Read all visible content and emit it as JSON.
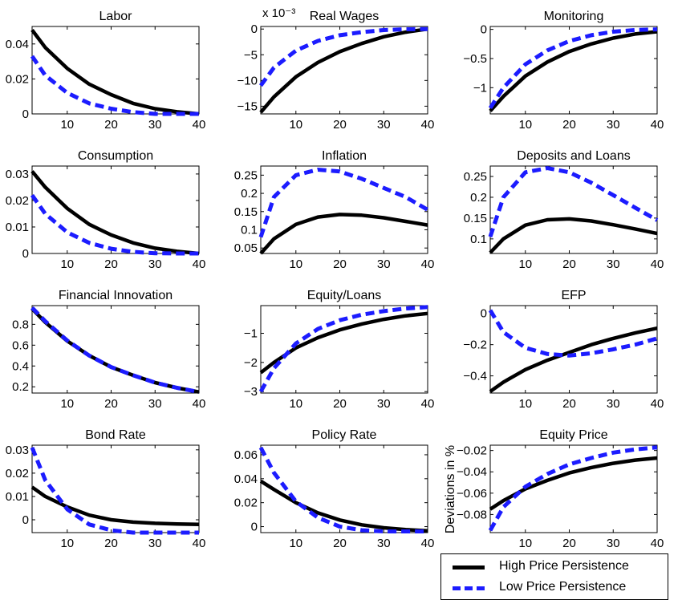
{
  "colors": {
    "high": "#000000",
    "low": "#1c1cff"
  },
  "legend": {
    "high_label": "High Price Persistence",
    "low_label": "Low Price Persistence"
  },
  "y_side_label": "Deviations in %",
  "chart_data": [
    {
      "type": "line",
      "title": "Labor",
      "xlim": [
        2,
        40
      ],
      "ylim": [
        0,
        0.05
      ],
      "xticks": [
        10,
        20,
        30,
        40
      ],
      "yticks": [
        0,
        0.02,
        0.04
      ],
      "ytick_labels": [
        "0",
        "0.02",
        "0.04"
      ],
      "x": [
        2,
        5,
        10,
        15,
        20,
        25,
        30,
        35,
        40
      ],
      "series": [
        {
          "name": "High Price Persistence",
          "values": [
            0.048,
            0.038,
            0.026,
            0.017,
            0.011,
            0.006,
            0.003,
            0.0012,
            0.0
          ]
        },
        {
          "name": "Low Price Persistence",
          "values": [
            0.033,
            0.022,
            0.012,
            0.006,
            0.003,
            0.001,
            0.0,
            0.0,
            0.0
          ]
        }
      ]
    },
    {
      "type": "line",
      "title": "Real Wages",
      "axis_multiplier": "x 10⁻³",
      "xlim": [
        2,
        40
      ],
      "ylim": [
        -16.5,
        0.5
      ],
      "xticks": [
        10,
        20,
        30,
        40
      ],
      "yticks": [
        -15,
        -10,
        -5,
        0
      ],
      "ytick_labels": [
        "−15",
        "−10",
        "−5",
        "0"
      ],
      "x": [
        2,
        5,
        10,
        15,
        20,
        25,
        30,
        35,
        40
      ],
      "series": [
        {
          "name": "High Price Persistence",
          "values": [
            -16.2,
            -13.2,
            -9.3,
            -6.5,
            -4.4,
            -2.8,
            -1.5,
            -0.6,
            0.0
          ]
        },
        {
          "name": "Low Price Persistence",
          "values": [
            -11,
            -7.5,
            -4.2,
            -2.3,
            -1.2,
            -0.6,
            -0.2,
            -0.05,
            0.0
          ]
        }
      ]
    },
    {
      "type": "line",
      "title": "Monitoring",
      "xlim": [
        2,
        40
      ],
      "ylim": [
        -1.45,
        0.05
      ],
      "xticks": [
        10,
        20,
        30,
        40
      ],
      "yticks": [
        -1,
        -0.5,
        0
      ],
      "ytick_labels": [
        "−1",
        "−0.5",
        "0"
      ],
      "x": [
        2,
        5,
        10,
        15,
        20,
        25,
        30,
        35,
        40
      ],
      "series": [
        {
          "name": "High Price Persistence",
          "values": [
            -1.4,
            -1.15,
            -0.8,
            -0.56,
            -0.38,
            -0.25,
            -0.15,
            -0.08,
            -0.04
          ]
        },
        {
          "name": "Low Price Persistence",
          "values": [
            -1.35,
            -1.0,
            -0.6,
            -0.36,
            -0.2,
            -0.1,
            -0.04,
            -0.01,
            0.0
          ]
        }
      ]
    },
    {
      "type": "line",
      "title": "Consumption",
      "xlim": [
        2,
        40
      ],
      "ylim": [
        0,
        0.033
      ],
      "xticks": [
        10,
        20,
        30,
        40
      ],
      "yticks": [
        0,
        0.01,
        0.02,
        0.03
      ],
      "ytick_labels": [
        "0",
        "0.01",
        "0.02",
        "0.03"
      ],
      "x": [
        2,
        5,
        10,
        15,
        20,
        25,
        30,
        35,
        40
      ],
      "series": [
        {
          "name": "High Price Persistence",
          "values": [
            0.031,
            0.025,
            0.017,
            0.011,
            0.007,
            0.004,
            0.002,
            0.0008,
            0.0
          ]
        },
        {
          "name": "Low Price Persistence",
          "values": [
            0.022,
            0.015,
            0.008,
            0.004,
            0.0018,
            0.0006,
            0.0001,
            0.0,
            0.0
          ]
        }
      ]
    },
    {
      "type": "line",
      "title": "Inflation",
      "xlim": [
        2,
        40
      ],
      "ylim": [
        0.035,
        0.275
      ],
      "xticks": [
        10,
        20,
        30,
        40
      ],
      "yticks": [
        0.05,
        0.1,
        0.15,
        0.2,
        0.25
      ],
      "ytick_labels": [
        "0.05",
        "0.1",
        "0.15",
        "0.2",
        "0.25"
      ],
      "x": [
        2,
        5,
        10,
        15,
        20,
        25,
        30,
        35,
        40
      ],
      "series": [
        {
          "name": "High Price Persistence",
          "values": [
            0.035,
            0.075,
            0.115,
            0.135,
            0.142,
            0.14,
            0.133,
            0.123,
            0.113
          ]
        },
        {
          "name": "Low Price Persistence",
          "values": [
            0.08,
            0.19,
            0.25,
            0.265,
            0.26,
            0.24,
            0.215,
            0.19,
            0.155
          ]
        }
      ]
    },
    {
      "type": "line",
      "title": "Deposits and Loans",
      "xlim": [
        2,
        40
      ],
      "ylim": [
        0.065,
        0.275
      ],
      "xticks": [
        10,
        20,
        30,
        40
      ],
      "yticks": [
        0.1,
        0.15,
        0.2,
        0.25
      ],
      "ytick_labels": [
        "0.1",
        "0.15",
        "0.2",
        "0.25"
      ],
      "x": [
        2,
        5,
        10,
        15,
        20,
        25,
        30,
        35,
        40
      ],
      "series": [
        {
          "name": "High Price Persistence",
          "values": [
            0.067,
            0.1,
            0.133,
            0.146,
            0.148,
            0.143,
            0.134,
            0.124,
            0.113
          ]
        },
        {
          "name": "Low Price Persistence",
          "values": [
            0.105,
            0.2,
            0.26,
            0.27,
            0.26,
            0.235,
            0.205,
            0.175,
            0.145
          ]
        }
      ]
    },
    {
      "type": "line",
      "title": "Financial Innovation",
      "xlim": [
        2,
        40
      ],
      "ylim": [
        0.14,
        0.98
      ],
      "xticks": [
        10,
        20,
        30,
        40
      ],
      "yticks": [
        0.2,
        0.4,
        0.6,
        0.8
      ],
      "ytick_labels": [
        "0.2",
        "0.4",
        "0.6",
        "0.8"
      ],
      "x": [
        2,
        5,
        10,
        15,
        20,
        25,
        30,
        35,
        40
      ],
      "series": [
        {
          "name": "High Price Persistence",
          "values": [
            0.95,
            0.82,
            0.64,
            0.5,
            0.39,
            0.31,
            0.24,
            0.19,
            0.15
          ]
        },
        {
          "name": "Low Price Persistence",
          "values": [
            0.96,
            0.83,
            0.645,
            0.5,
            0.39,
            0.31,
            0.24,
            0.19,
            0.15
          ]
        }
      ]
    },
    {
      "type": "line",
      "title": "Equity/Loans",
      "xlim": [
        2,
        40
      ],
      "ylim": [
        -3.05,
        -0.05
      ],
      "xticks": [
        10,
        20,
        30,
        40
      ],
      "yticks": [
        -3,
        -2,
        -1
      ],
      "ytick_labels": [
        "−3",
        "−2",
        "−1"
      ],
      "x": [
        2,
        5,
        10,
        15,
        20,
        25,
        30,
        35,
        40
      ],
      "series": [
        {
          "name": "High Price Persistence",
          "values": [
            -2.35,
            -2.0,
            -1.5,
            -1.15,
            -0.88,
            -0.68,
            -0.52,
            -0.4,
            -0.32
          ]
        },
        {
          "name": "Low Price Persistence",
          "values": [
            -3.0,
            -2.2,
            -1.35,
            -0.85,
            -0.55,
            -0.36,
            -0.24,
            -0.15,
            -0.1
          ]
        }
      ]
    },
    {
      "type": "line",
      "title": "EFP",
      "xlim": [
        2,
        40
      ],
      "ylim": [
        -0.51,
        0.05
      ],
      "xticks": [
        10,
        20,
        30,
        40
      ],
      "yticks": [
        -0.4,
        -0.2,
        0
      ],
      "ytick_labels": [
        "−0.4",
        "−0.2",
        "0"
      ],
      "x": [
        2,
        5,
        10,
        15,
        20,
        25,
        30,
        35,
        40
      ],
      "series": [
        {
          "name": "High Price Persistence",
          "values": [
            -0.5,
            -0.44,
            -0.36,
            -0.3,
            -0.25,
            -0.2,
            -0.16,
            -0.125,
            -0.095
          ]
        },
        {
          "name": "Low Price Persistence",
          "values": [
            0.02,
            -0.12,
            -0.22,
            -0.26,
            -0.27,
            -0.255,
            -0.23,
            -0.2,
            -0.16
          ]
        }
      ]
    },
    {
      "type": "line",
      "title": "Bond Rate",
      "xlim": [
        2,
        40
      ],
      "ylim": [
        -0.0055,
        0.032
      ],
      "xticks": [
        10,
        20,
        30,
        40
      ],
      "yticks": [
        0,
        0.01,
        0.02,
        0.03
      ],
      "ytick_labels": [
        "0",
        "0.01",
        "0.02",
        "0.03"
      ],
      "x": [
        2,
        5,
        10,
        15,
        20,
        25,
        30,
        35,
        40
      ],
      "series": [
        {
          "name": "High Price Persistence",
          "values": [
            0.014,
            0.01,
            0.0055,
            0.002,
            0.0,
            -0.001,
            -0.0015,
            -0.0018,
            -0.002
          ]
        },
        {
          "name": "Low Price Persistence",
          "values": [
            0.031,
            0.017,
            0.0045,
            -0.002,
            -0.0045,
            -0.0055,
            -0.0055,
            -0.0055,
            -0.0055
          ]
        }
      ]
    },
    {
      "type": "line",
      "title": "Policy Rate",
      "xlim": [
        2,
        40
      ],
      "ylim": [
        -0.005,
        0.068
      ],
      "xticks": [
        10,
        20,
        30,
        40
      ],
      "yticks": [
        0,
        0.02,
        0.04,
        0.06
      ],
      "ytick_labels": [
        "0",
        "0.02",
        "0.04",
        "0.06"
      ],
      "x": [
        2,
        5,
        10,
        15,
        20,
        25,
        30,
        35,
        40
      ],
      "series": [
        {
          "name": "High Price Persistence",
          "values": [
            0.038,
            0.031,
            0.02,
            0.0115,
            0.0055,
            0.0015,
            -0.001,
            -0.0025,
            -0.0035
          ]
        },
        {
          "name": "Low Price Persistence",
          "values": [
            0.066,
            0.045,
            0.021,
            0.0075,
            0.0,
            -0.003,
            -0.004,
            -0.004,
            -0.004
          ]
        }
      ]
    },
    {
      "type": "line",
      "title": "Equity Price",
      "xlim": [
        2,
        40
      ],
      "ylim": [
        -0.097,
        -0.015
      ],
      "xticks": [
        10,
        20,
        30,
        40
      ],
      "yticks": [
        -0.08,
        -0.06,
        -0.04,
        -0.02
      ],
      "ytick_labels": [
        "−0.08",
        "−0.06",
        "−0.04",
        "−0.02"
      ],
      "x": [
        2,
        5,
        10,
        15,
        20,
        25,
        30,
        35,
        40
      ],
      "series": [
        {
          "name": "High Price Persistence",
          "values": [
            -0.075,
            -0.067,
            -0.056,
            -0.048,
            -0.041,
            -0.036,
            -0.032,
            -0.029,
            -0.027
          ]
        },
        {
          "name": "Low Price Persistence",
          "values": [
            -0.095,
            -0.073,
            -0.054,
            -0.042,
            -0.033,
            -0.027,
            -0.022,
            -0.019,
            -0.017
          ]
        }
      ]
    }
  ]
}
